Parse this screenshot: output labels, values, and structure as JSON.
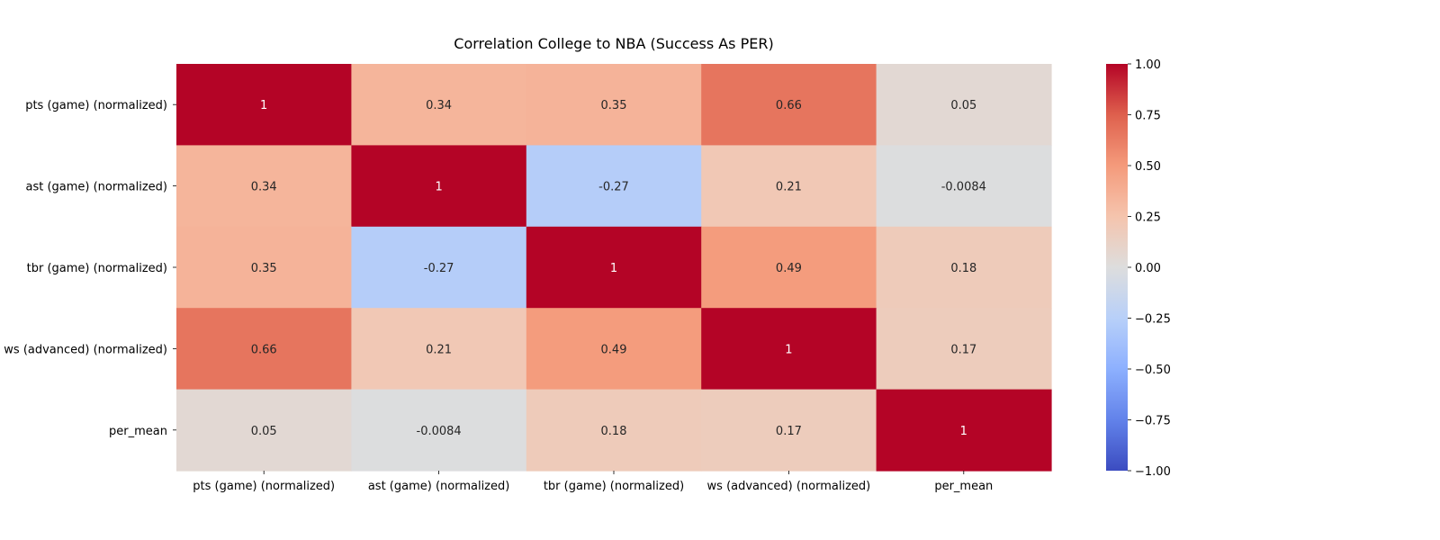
{
  "chart_data": {
    "type": "heatmap",
    "title": "Correlation College to NBA (Success As PER)",
    "x_labels": [
      "pts (game) (normalized)",
      "ast (game) (normalized)",
      "tbr (game) (normalized)",
      "ws (advanced) (normalized)",
      "per_mean"
    ],
    "y_labels": [
      "pts (game) (normalized)",
      "ast (game) (normalized)",
      "tbr (game) (normalized)",
      "ws (advanced) (normalized)",
      "per_mean"
    ],
    "values": [
      [
        1,
        0.34,
        0.35,
        0.66,
        0.05
      ],
      [
        0.34,
        1,
        -0.27,
        0.21,
        -0.0084
      ],
      [
        0.35,
        -0.27,
        1,
        0.49,
        0.18
      ],
      [
        0.66,
        0.21,
        0.49,
        1,
        0.17
      ],
      [
        0.05,
        -0.0084,
        0.18,
        0.17,
        1
      ]
    ],
    "cell_text": [
      [
        "1",
        "0.34",
        "0.35",
        "0.66",
        "0.05"
      ],
      [
        "0.34",
        "1",
        "-0.27",
        "0.21",
        "-0.0084"
      ],
      [
        "0.35",
        "-0.27",
        "1",
        "0.49",
        "0.18"
      ],
      [
        "0.66",
        "0.21",
        "0.49",
        "1",
        "0.17"
      ],
      [
        "0.05",
        "-0.0084",
        "0.18",
        "0.17",
        "1"
      ]
    ],
    "colormap": "coolwarm",
    "vmin": -1,
    "vmax": 1,
    "colorbar_ticks": [
      1.0,
      0.75,
      0.5,
      0.25,
      0.0,
      -0.25,
      -0.5,
      -0.75,
      -1.0
    ],
    "colorbar_tick_labels": [
      "1.00",
      "0.75",
      "0.50",
      "0.25",
      "0.00",
      "−0.25",
      "−0.50",
      "−0.75",
      "−1.00"
    ]
  }
}
